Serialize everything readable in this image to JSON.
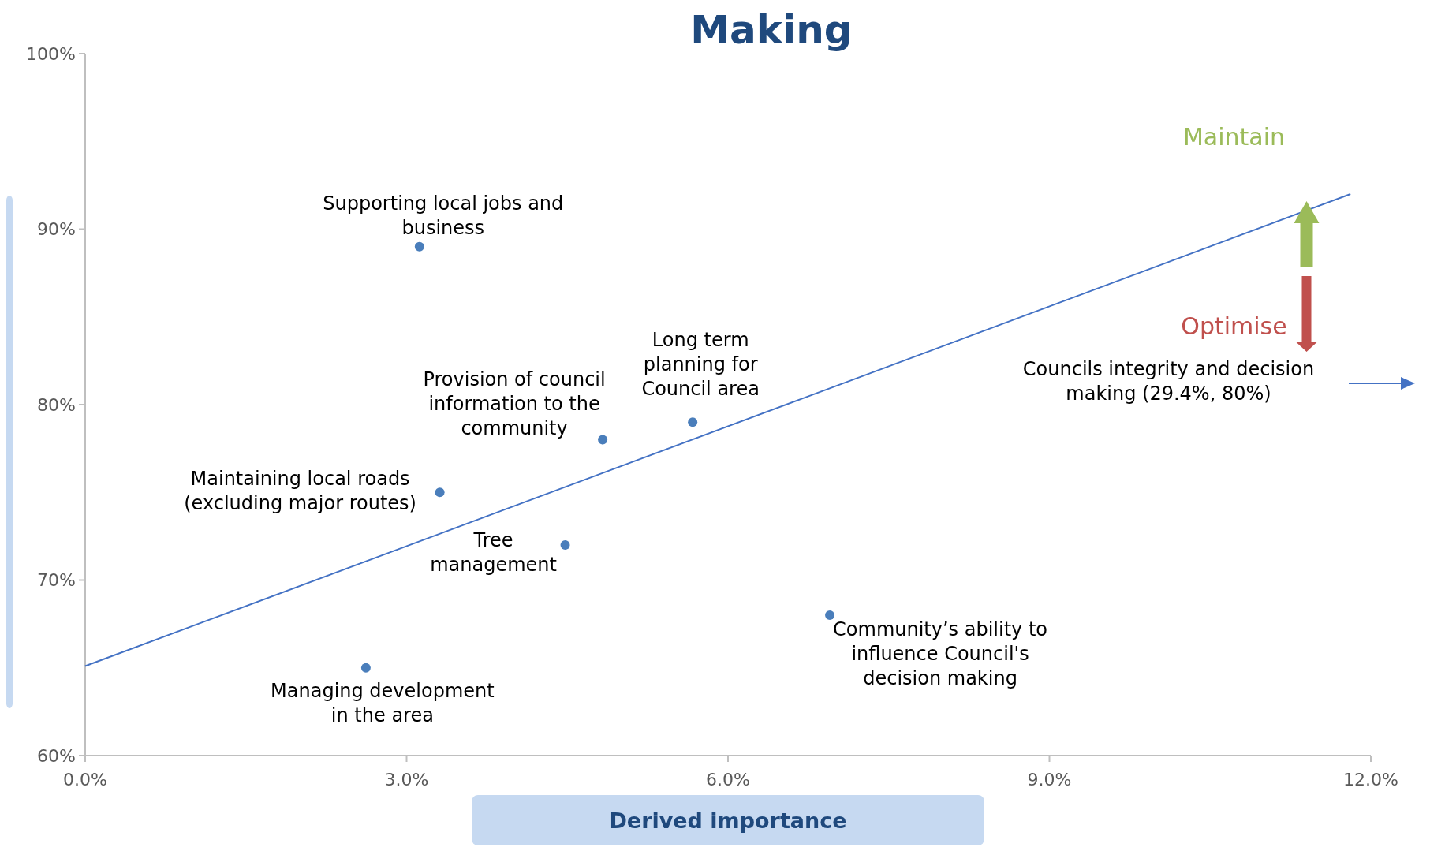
{
  "chart_data": {
    "type": "scatter",
    "title": "Making",
    "xlabel": "Derived importance",
    "xlim": [
      0,
      12
    ],
    "ylim": [
      60,
      100
    ],
    "xticks": [
      {
        "value": 0,
        "label": "0.0%"
      },
      {
        "value": 3,
        "label": "3.0%"
      },
      {
        "value": 6,
        "label": "6.0%"
      },
      {
        "value": 9,
        "label": "9.0%"
      },
      {
        "value": 12,
        "label": "12.0%"
      }
    ],
    "yticks": [
      {
        "value": 60,
        "label": "60%"
      },
      {
        "value": 70,
        "label": "70%"
      },
      {
        "value": 80,
        "label": "80%"
      },
      {
        "value": 90,
        "label": "90%"
      },
      {
        "value": 100,
        "label": "100%"
      }
    ],
    "grid": false,
    "marker": "circle",
    "series": [
      {
        "color": "#4a7ebb",
        "x": [
          3.12,
          4.83,
          5.67,
          3.31,
          4.48,
          6.95,
          2.62
        ],
        "values": [
          89,
          78,
          79,
          75,
          72,
          68,
          65
        ]
      },
      {
        "type": "line",
        "color": "#4472c4",
        "x": [
          0,
          11.81
        ],
        "values": [
          65.1,
          92.0
        ],
        "marker": "none",
        "line_style": "solid"
      }
    ],
    "annotations": [
      {
        "text": "Supporting local jobs and\nbusiness",
        "x": 3.12,
        "y": 89
      },
      {
        "text": "Provision of council\ninformation to the\ncommunity",
        "x": 4.83,
        "y": 78
      },
      {
        "text": "Long term\nplanning for\nCouncil area",
        "x": 5.67,
        "y": 79
      },
      {
        "text": "Maintaining local roads\n(excluding major routes)",
        "x": 3.31,
        "y": 75
      },
      {
        "text": "Tree\nmanagement",
        "x": 4.48,
        "y": 72
      },
      {
        "text": "Community’s ability to\ninfluence Council's\ndecision making",
        "x": 6.95,
        "y": 68
      },
      {
        "text": "Managing development\nin the area",
        "x": 2.62,
        "y": 65
      },
      "Maintain",
      "Optimise",
      "Councils integrity and decision\nmaking (29.4%, 80%)"
    ]
  }
}
